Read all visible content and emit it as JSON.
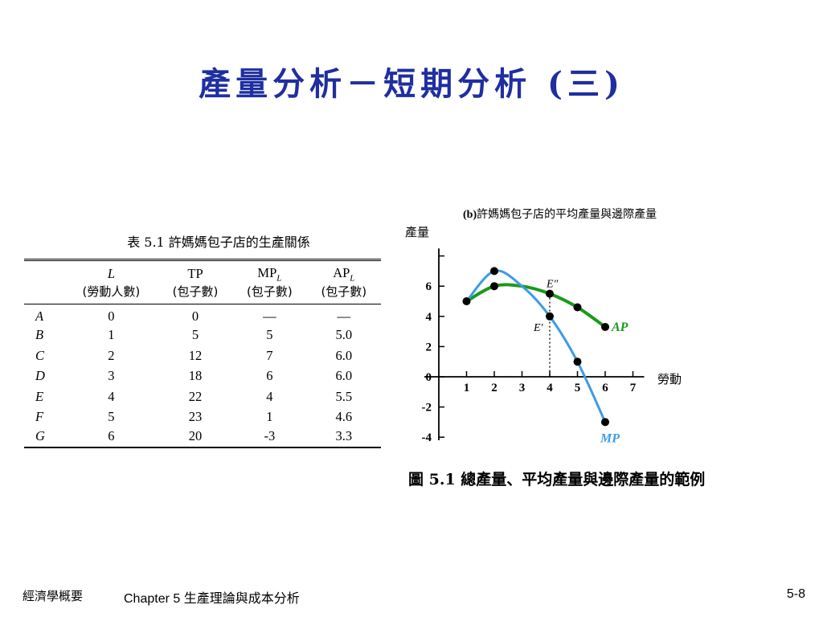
{
  "title": "產量分析－短期分析 (三)",
  "table": {
    "caption": "表 5.1   許媽媽包子店的生產關係",
    "headers": [
      {
        "main": "L",
        "sub": "",
        "zh": "(勞動人數)"
      },
      {
        "main": "TP",
        "sub": "",
        "zh": "(包子數)"
      },
      {
        "main": "MP",
        "sub": "L",
        "zh": "(包子數)"
      },
      {
        "main": "AP",
        "sub": "L",
        "zh": "(包子數)"
      }
    ],
    "rows": [
      {
        "label": "A",
        "cells": [
          "0",
          "0",
          "—",
          "—"
        ]
      },
      {
        "label": "B",
        "cells": [
          "1",
          "5",
          "5",
          "5.0"
        ]
      },
      {
        "label": "C",
        "cells": [
          "2",
          "12",
          "7",
          "6.0"
        ]
      },
      {
        "label": "D",
        "cells": [
          "3",
          "18",
          "6",
          "6.0"
        ]
      },
      {
        "label": "E",
        "cells": [
          "4",
          "22",
          "4",
          "5.5"
        ]
      },
      {
        "label": "F",
        "cells": [
          "5",
          "23",
          "1",
          "4.6"
        ]
      },
      {
        "label": "G",
        "cells": [
          "6",
          "20",
          "-3",
          "3.3"
        ]
      }
    ]
  },
  "chart_data": {
    "type": "line",
    "title_prefix": "(b)",
    "title": "許媽媽包子店的平均產量與邊際產量",
    "xlabel": "勞動",
    "ylabel": "產量",
    "xlim": [
      0,
      7
    ],
    "ylim": [
      -4,
      8
    ],
    "xticks": [
      "1",
      "2",
      "3",
      "4",
      "5",
      "6",
      "7"
    ],
    "yticks": [
      "6",
      "4",
      "2",
      "0",
      "-2",
      "-4"
    ],
    "series": [
      {
        "name": "AP",
        "color": "#1a9a1a",
        "x": [
          1,
          2,
          4,
          5,
          6
        ],
        "y": [
          5.0,
          6.0,
          5.5,
          4.6,
          3.3
        ],
        "curve_x": [
          1,
          2,
          3,
          4,
          5,
          6
        ],
        "curve_y": [
          5.0,
          6.0,
          6.0,
          5.5,
          4.6,
          3.3
        ]
      },
      {
        "name": "MP",
        "color": "#3d9be6",
        "x": [
          2,
          4,
          5,
          6
        ],
        "y": [
          7,
          4,
          1,
          -3
        ],
        "curve_x": [
          1,
          2,
          3,
          4,
          5,
          6
        ],
        "curve_y": [
          5,
          7,
          6,
          4,
          1,
          -3
        ]
      }
    ],
    "annotations": [
      {
        "text": "E″",
        "x": 4,
        "y": 5.5
      },
      {
        "text": "E′",
        "x": 4,
        "y": 4
      }
    ],
    "dashed_guide": {
      "x": 4,
      "y_top": 5.5,
      "y_bottom": 0
    }
  },
  "figure_caption": "圖 5.1 總產量、平均產量與邊際產量的範例",
  "footer": {
    "course": "經濟學概要",
    "chapter": "Chapter 5 生產理論與成本分析",
    "page": "5-8"
  }
}
